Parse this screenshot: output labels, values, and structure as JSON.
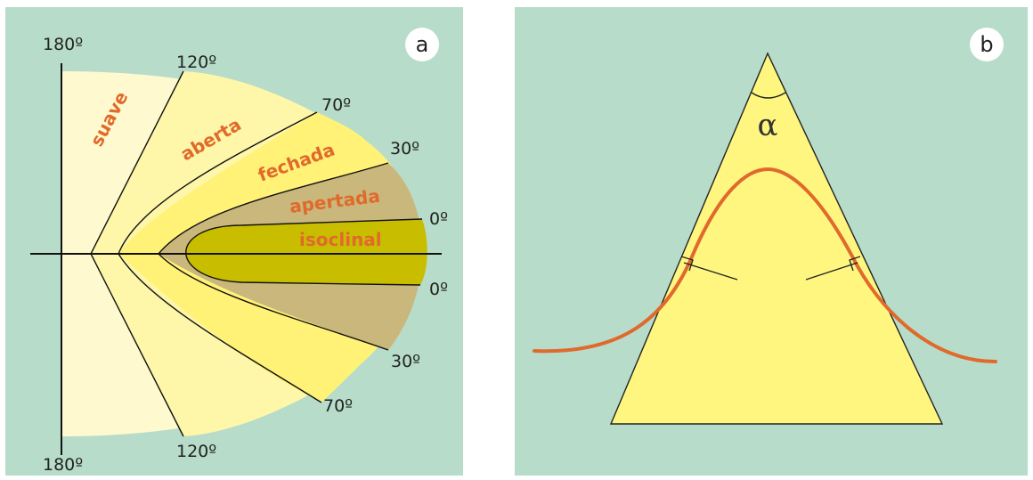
{
  "colors": {
    "background": "#b7dcca",
    "zone_suave": "#fef9cf",
    "zone_aberta": "#fef6a8",
    "zone_fechada": "#fff277",
    "zone_apertada": "#c9b77b",
    "zone_isoclinal": "#c9bd00",
    "label_orange": "#e06a2c",
    "fold_curve": "#e06a2c",
    "triangle_fill": "#fff680"
  },
  "panel_a": {
    "badge": "a",
    "angles": {
      "top_180": "180º",
      "top_120": "120º",
      "top_70": "70º",
      "top_30": "30º",
      "top_0": "0º",
      "bottom_0": "0º",
      "bottom_30": "30º",
      "bottom_70": "70º",
      "bottom_120": "120º",
      "bottom_180": "180º"
    },
    "zones": {
      "suave": "suave",
      "aberta": "aberta",
      "fechada": "fechada",
      "apertada": "apertada",
      "isoclinal": "isoclinal"
    }
  },
  "panel_b": {
    "badge": "b",
    "angle_symbol": "α"
  }
}
